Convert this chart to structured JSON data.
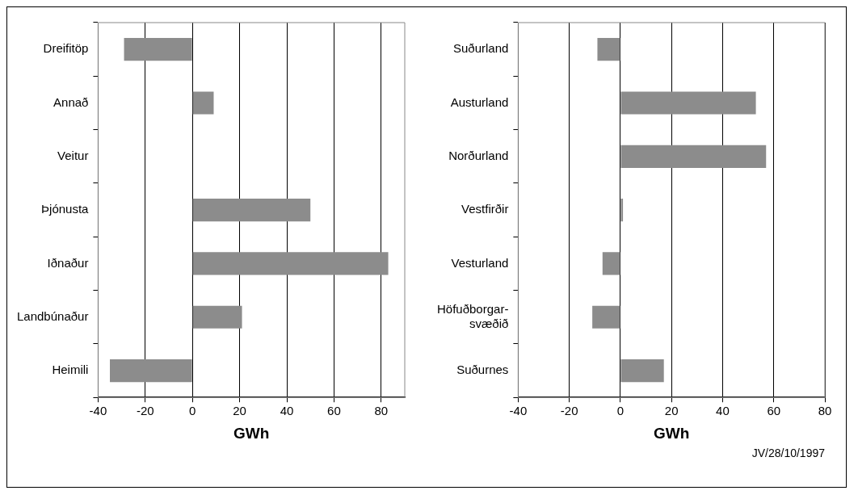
{
  "chart_data": [
    {
      "type": "bar",
      "orientation": "horizontal",
      "xlabel": "GWh",
      "categories": [
        "Dreifitöp",
        "Annað",
        "Veitur",
        "Þjónusta",
        "Iðnaður",
        "Landbúnaður",
        "Heimili"
      ],
      "values": [
        -29,
        9,
        0,
        50,
        83,
        21,
        -35
      ],
      "color": "#8c8c8c",
      "xlim": [
        -40,
        90
      ],
      "xticks": [
        -40,
        -20,
        0,
        20,
        40,
        60,
        80
      ],
      "grid": "x",
      "legend": false
    },
    {
      "type": "bar",
      "orientation": "horizontal",
      "xlabel": "GWh",
      "categories": [
        "Suðurland",
        "Austurland",
        "Norðurland",
        "Vestfirðir",
        "Vesturland",
        "Höfuðborgar-svæðið",
        "Suðurnes"
      ],
      "values": [
        -9,
        53,
        57,
        1,
        -7,
        -11,
        17
      ],
      "color": "#8c8c8c",
      "xlim": [
        -40,
        80
      ],
      "xticks": [
        -40,
        -20,
        0,
        20,
        40,
        60,
        80
      ],
      "grid": "x",
      "legend": false,
      "annotations": [
        "JV/28/10/1997"
      ]
    }
  ]
}
